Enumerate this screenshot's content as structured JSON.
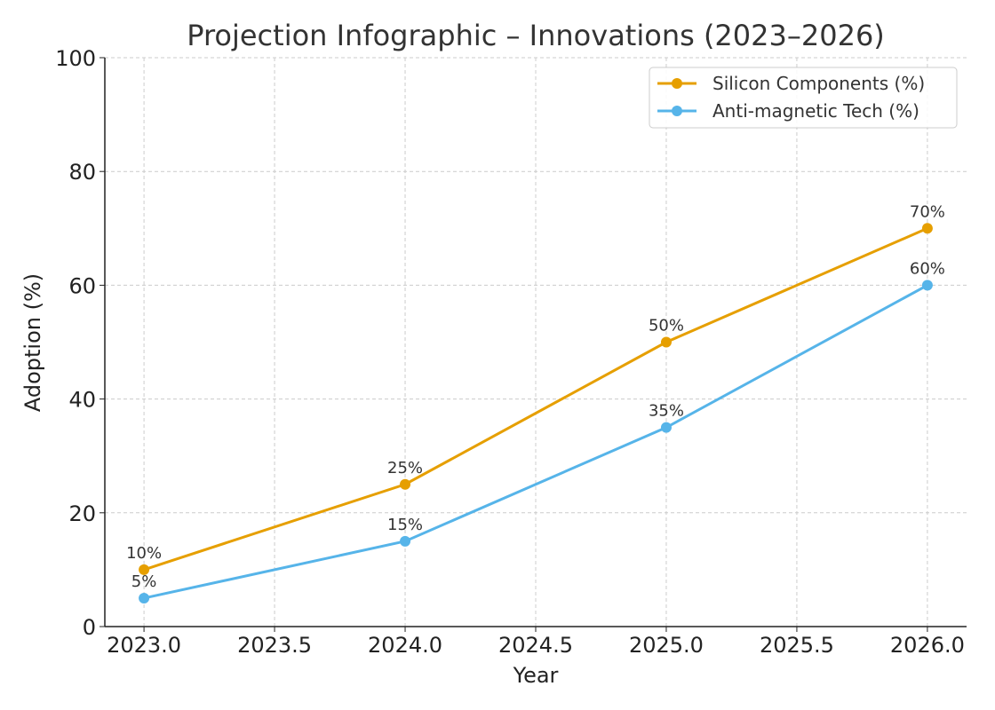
{
  "chart_data": {
    "type": "line",
    "title": "Projection Infographic – Innovations (2023–2026)",
    "xlabel": "Year",
    "ylabel": "Adoption (%)",
    "x": [
      2023,
      2024,
      2025,
      2026
    ],
    "xlim": [
      2022.85,
      2026.15
    ],
    "ylim": [
      0,
      100
    ],
    "xticks": [
      2023.0,
      2023.5,
      2024.0,
      2024.5,
      2025.0,
      2025.5,
      2026.0
    ],
    "xtick_labels": [
      "2023.0",
      "2023.5",
      "2024.0",
      "2024.5",
      "2025.0",
      "2025.5",
      "2026.0"
    ],
    "yticks": [
      0,
      20,
      40,
      60,
      80,
      100
    ],
    "ytick_labels": [
      "0",
      "20",
      "40",
      "60",
      "80",
      "100"
    ],
    "grid": true,
    "legend_position": "top-right",
    "series": [
      {
        "name": "Silicon Components (%)",
        "color": "#E69F00",
        "values": [
          10,
          25,
          50,
          70
        ],
        "labels": [
          "10%",
          "25%",
          "50%",
          "70%"
        ]
      },
      {
        "name": "Anti-magnetic Tech (%)",
        "color": "#56B4E9",
        "values": [
          5,
          15,
          35,
          60
        ],
        "labels": [
          "5%",
          "15%",
          "35%",
          "60%"
        ]
      }
    ]
  }
}
